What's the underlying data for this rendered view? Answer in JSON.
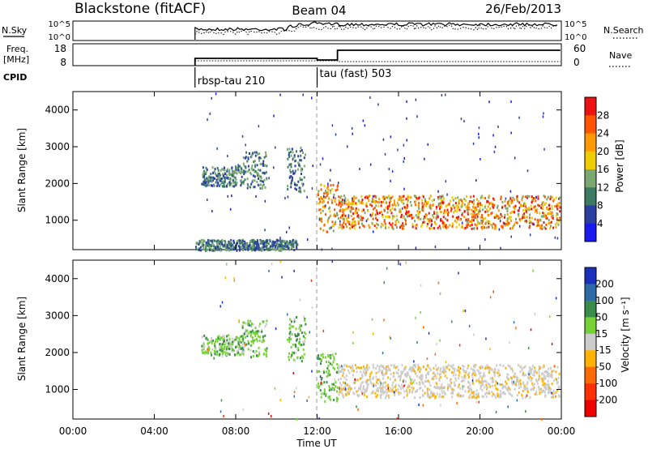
{
  "header": {
    "station": "Blackstone (fitACF)",
    "beam": "Beam 04",
    "date": "26/Feb/2013"
  },
  "status_panels": {
    "nsky_label": "N.Sky",
    "nsky_ticks": [
      "10^5",
      "10^0"
    ],
    "nsearch_label": "N.Search",
    "nsearch_ticks": [
      "10^5",
      "10^0"
    ],
    "freq_label_line1": "Freq.",
    "freq_label_line2": "[MHz]",
    "freq_ticks": [
      "18",
      "8"
    ],
    "nave_label": "Nave",
    "nave_ticks": [
      "60",
      "0"
    ],
    "cpid_label": "CPID",
    "cpid_programs": [
      {
        "name": "rbsp-tau 210",
        "start_hour": 6.0
      },
      {
        "name": "tau (fast) 503",
        "start_hour": 12.0
      }
    ]
  },
  "chart_data": [
    {
      "type": "heatmap",
      "name": "power",
      "ylabel": "Slant Range [km]",
      "xlim_hours": [
        0,
        24
      ],
      "ylim_km": [
        200,
        4500
      ],
      "yticks": [
        1000,
        2000,
        3000,
        4000
      ],
      "colorbar": {
        "label": "Power [dB]",
        "ticks": [
          "28",
          "24",
          "20",
          "16",
          "12",
          "8",
          "4"
        ],
        "colors": [
          "#ee1111",
          "#ff5500",
          "#ff9900",
          "#eecc00",
          "#7aa870",
          "#3c7a64",
          "#2a3f9f",
          "#1a1aee"
        ]
      },
      "regions": [
        {
          "t0": 6.3,
          "t1": 8.3,
          "r0": 1950,
          "r1": 2500,
          "level": "low"
        },
        {
          "t0": 8.3,
          "t1": 9.5,
          "r0": 1900,
          "r1": 2900,
          "level": "low"
        },
        {
          "t0": 10.5,
          "t1": 11.4,
          "r0": 1800,
          "r1": 3000,
          "level": "low"
        },
        {
          "t0": 12.0,
          "t1": 13.0,
          "r0": 700,
          "r1": 2000,
          "level": "mid"
        },
        {
          "t0": 13.0,
          "t1": 23.9,
          "r0": 800,
          "r1": 1700,
          "level": "high"
        },
        {
          "t0": 6.0,
          "t1": 11.0,
          "r0": 200,
          "r1": 500,
          "level": "low"
        }
      ]
    },
    {
      "type": "heatmap",
      "name": "velocity",
      "xlabel": "Time UT",
      "ylabel": "Slant Range [km]",
      "xlim_hours": [
        0,
        24
      ],
      "ylim_km": [
        200,
        4500
      ],
      "yticks": [
        1000,
        2000,
        3000,
        4000
      ],
      "xticks": [
        "00:00",
        "04:00",
        "08:00",
        "12:00",
        "16:00",
        "20:00",
        "00:00"
      ],
      "colorbar": {
        "label": "Velocity [m s⁻¹]",
        "ticks": [
          "200",
          "100",
          "50",
          "15",
          "-15",
          "-50",
          "-100",
          "-200"
        ],
        "colors": [
          "#1a2fbe",
          "#2d6aa8",
          "#3a8c4a",
          "#76d236",
          "#cccccc",
          "#ffb300",
          "#ff6a00",
          "#ff3000",
          "#ee0000"
        ]
      },
      "regions": [
        {
          "t0": 6.3,
          "t1": 8.3,
          "r0": 1950,
          "r1": 2500,
          "level": "slow"
        },
        {
          "t0": 8.3,
          "t1": 9.5,
          "r0": 1900,
          "r1": 2900,
          "level": "slow"
        },
        {
          "t0": 10.5,
          "t1": 11.4,
          "r0": 1800,
          "r1": 3000,
          "level": "slow"
        },
        {
          "t0": 12.0,
          "t1": 13.0,
          "r0": 700,
          "r1": 2000,
          "level": "positive"
        },
        {
          "t0": 13.0,
          "t1": 23.9,
          "r0": 800,
          "r1": 1700,
          "level": "zero"
        }
      ]
    }
  ]
}
